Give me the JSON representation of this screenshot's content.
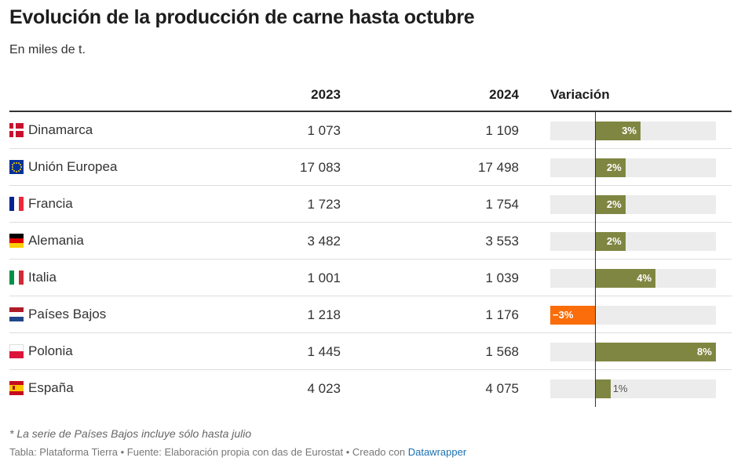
{
  "title": "Evolución de la producción de carne hasta octubre",
  "subtitle": "En miles de t.",
  "headers": {
    "col2023": "2023",
    "col2024": "2024",
    "variation": "Variación"
  },
  "colors": {
    "positive": "#7f8641",
    "negative": "#fa6d0a",
    "background": "#ececec"
  },
  "chart_data": {
    "type": "table",
    "title": "Evolución de la producción de carne hasta octubre",
    "unit": "miles de t.",
    "columns": [
      "2023",
      "2024",
      "Variación"
    ],
    "variation_range": [
      -3,
      8
    ],
    "rows": [
      {
        "country": "Dinamarca",
        "flag": "denmark-flag-icon",
        "v2023": "1 073",
        "v2024": "1 109",
        "variation": 3,
        "label": "3%"
      },
      {
        "country": "Unión Europea",
        "flag": "eu-flag-icon",
        "v2023": "17 083",
        "v2024": "17 498",
        "variation": 2,
        "label": "2%"
      },
      {
        "country": "Francia",
        "flag": "france-flag-icon",
        "v2023": "1 723",
        "v2024": "1 754",
        "variation": 2,
        "label": "2%"
      },
      {
        "country": "Alemania",
        "flag": "germany-flag-icon",
        "v2023": "3 482",
        "v2024": "3 553",
        "variation": 2,
        "label": "2%"
      },
      {
        "country": "Italia",
        "flag": "italy-flag-icon",
        "v2023": "1 001",
        "v2024": "1 039",
        "variation": 4,
        "label": "4%"
      },
      {
        "country": "Países Bajos",
        "flag": "netherlands-flag-icon",
        "v2023": "1 218",
        "v2024": "1 176",
        "variation": -3,
        "label": "−3%"
      },
      {
        "country": "Polonia",
        "flag": "poland-flag-icon",
        "v2023": "1 445",
        "v2024": "1 568",
        "variation": 8,
        "label": "8%"
      },
      {
        "country": "España",
        "flag": "spain-flag-icon",
        "v2023": "4 023",
        "v2024": "4 075",
        "variation": 1,
        "label": "1%"
      }
    ]
  },
  "footnote": "* La serie de Países Bajos incluye sólo hasta julio",
  "source": {
    "text": "Tabla: Plataforma Tierra • Fuente: Elaboración propia con das de Eurostat • Creado con ",
    "link": "Datawrapper"
  }
}
